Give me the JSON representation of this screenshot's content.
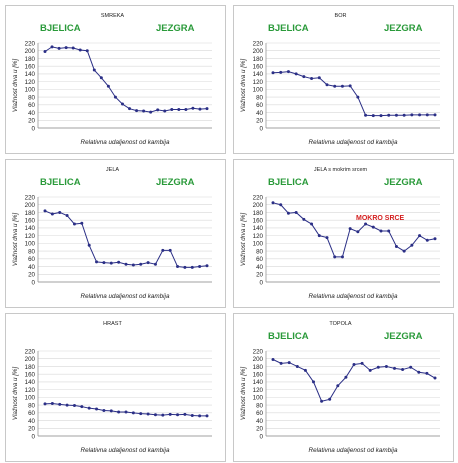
{
  "colors": {
    "label_green": "#2a9a3a",
    "label_red": "#d42020",
    "series": "#2b2f86",
    "grid": "#d8d8d8",
    "text": "#222222"
  },
  "chart_data": [
    {
      "type": "line",
      "title": "SMREKA",
      "left_label": "BJELICA",
      "right_label": "JEZGRA",
      "annotation": "",
      "xlabel": "Relativna udaljenost od kambija",
      "ylabel": "Vlažnost drva u [%]",
      "ylim": [
        0,
        220
      ],
      "yticks": [
        0,
        20,
        40,
        60,
        80,
        100,
        120,
        140,
        160,
        180,
        200,
        220
      ],
      "grid": true,
      "values": [
        198,
        210,
        206,
        208,
        207,
        202,
        200,
        150,
        130,
        108,
        80,
        62,
        50,
        45,
        44,
        41,
        47,
        44,
        48,
        48,
        48,
        51,
        49,
        50
      ]
    },
    {
      "type": "line",
      "title": "BOR",
      "left_label": "BJELICA",
      "right_label": "JEZGRA",
      "annotation": "",
      "xlabel": "Relativna udaljenost od kambija",
      "ylabel": "Vlažnost drva u [%]",
      "ylim": [
        0,
        220
      ],
      "yticks": [
        0,
        20,
        40,
        60,
        80,
        100,
        120,
        140,
        160,
        180,
        200,
        220
      ],
      "grid": true,
      "values": [
        143,
        144,
        146,
        140,
        133,
        128,
        130,
        112,
        108,
        108,
        109,
        80,
        33,
        32,
        32,
        33,
        33,
        33,
        34,
        34,
        34,
        34
      ]
    },
    {
      "type": "line",
      "title": "JELA",
      "left_label": "BJELICA",
      "right_label": "JEZGRA",
      "annotation": "",
      "xlabel": "Relativna udaljenost od kambija",
      "ylabel": "Vlažnost drva u [%]",
      "ylim": [
        0,
        220
      ],
      "yticks": [
        0,
        20,
        40,
        60,
        80,
        100,
        120,
        140,
        160,
        180,
        200,
        220
      ],
      "grid": true,
      "values": [
        184,
        176,
        180,
        172,
        150,
        152,
        95,
        52,
        50,
        49,
        51,
        46,
        44,
        46,
        50,
        46,
        82,
        82,
        40,
        38,
        38,
        40,
        42
      ]
    },
    {
      "type": "line",
      "title": "JELA s mokrim srcem",
      "left_label": "BJELICA",
      "right_label": "JEZGRA",
      "annotation": "MOKRO SRCE",
      "xlabel": "Relativna udaljenost od kambija",
      "ylabel": "Vlažnost drva u [%]",
      "ylim": [
        0,
        220
      ],
      "yticks": [
        0,
        20,
        40,
        60,
        80,
        100,
        120,
        140,
        160,
        180,
        200,
        220
      ],
      "grid": true,
      "values": [
        205,
        200,
        178,
        180,
        162,
        150,
        120,
        115,
        65,
        65,
        138,
        130,
        150,
        142,
        132,
        132,
        92,
        80,
        95,
        120,
        108,
        112
      ]
    },
    {
      "type": "line",
      "title": "HRAST",
      "left_label": "",
      "right_label": "",
      "annotation": "",
      "xlabel": "Relativna udaljenost od kambija",
      "ylabel": "Vlažnost drva u [%]",
      "ylim": [
        0,
        220
      ],
      "yticks": [
        0,
        20,
        40,
        60,
        80,
        100,
        120,
        140,
        160,
        180,
        200,
        220
      ],
      "grid": true,
      "values": [
        83,
        84,
        82,
        80,
        79,
        76,
        72,
        70,
        66,
        65,
        62,
        62,
        60,
        58,
        57,
        55,
        54,
        56,
        55,
        56,
        53,
        52,
        52
      ]
    },
    {
      "type": "line",
      "title": "TOPOLA",
      "left_label": "BJELICA",
      "right_label": "JEZGRA",
      "annotation": "",
      "xlabel": "Relativna udaljenost od kambija",
      "ylabel": "Vlažnost drva u [%]",
      "ylim": [
        0,
        220
      ],
      "yticks": [
        0,
        20,
        40,
        60,
        80,
        100,
        120,
        140,
        160,
        180,
        200,
        220
      ],
      "grid": true,
      "values": [
        198,
        188,
        190,
        180,
        170,
        140,
        90,
        95,
        130,
        152,
        185,
        188,
        170,
        178,
        180,
        175,
        172,
        178,
        165,
        162,
        150
      ]
    }
  ]
}
